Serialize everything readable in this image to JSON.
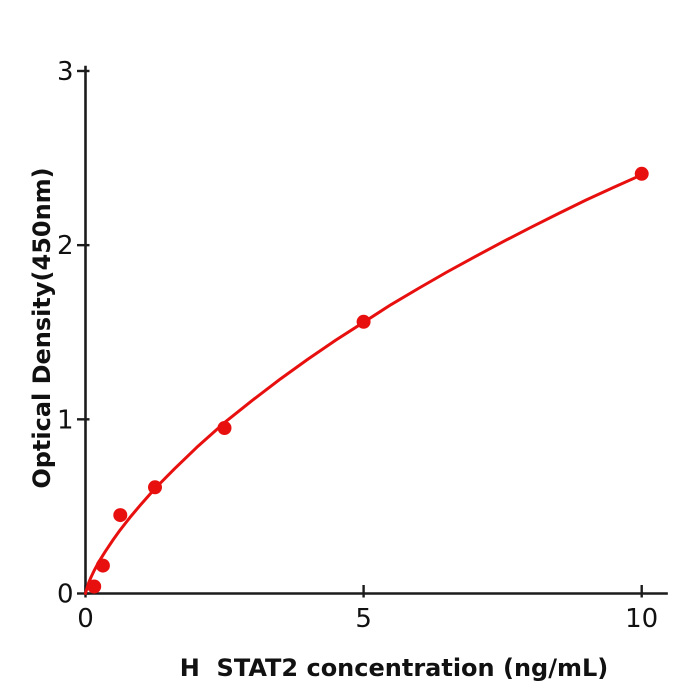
{
  "chart_data": {
    "type": "scatter",
    "subtype": "standard-curve-with-fit",
    "title": "",
    "xlabel": "H  STAT2 concentration (ng/mL)",
    "ylabel": "Optical Density(450nm)",
    "xlim": [
      0,
      10.47
    ],
    "ylim": [
      0,
      3.03
    ],
    "grid": false,
    "legend": null,
    "x_ticks": [
      {
        "value": 0,
        "label": "0"
      },
      {
        "value": 5,
        "label": "5"
      },
      {
        "value": 10,
        "label": "10"
      }
    ],
    "y_ticks": [
      {
        "value": 0,
        "label": "0"
      },
      {
        "value": 1,
        "label": "1"
      },
      {
        "value": 2,
        "label": "2"
      },
      {
        "value": 3,
        "label": "3"
      }
    ],
    "series": [
      {
        "name": "H STAT2 standard points",
        "type": "scatter",
        "marker": "circle",
        "points": [
          [
            0.156,
            0.04
          ],
          [
            0.313,
            0.16
          ],
          [
            0.625,
            0.45
          ],
          [
            1.25,
            0.61
          ],
          [
            2.5,
            0.95
          ],
          [
            5,
            1.56
          ],
          [
            10,
            2.41
          ]
        ]
      },
      {
        "name": "fitted curve",
        "type": "line",
        "points": [
          [
            0,
            0
          ],
          [
            0.05,
            0.056
          ],
          [
            0.1,
            0.095
          ],
          [
            0.156,
            0.132
          ],
          [
            0.25,
            0.187
          ],
          [
            0.35,
            0.239
          ],
          [
            0.5,
            0.31
          ],
          [
            0.625,
            0.366
          ],
          [
            0.8,
            0.437
          ],
          [
            1.0,
            0.513
          ],
          [
            1.25,
            0.603
          ],
          [
            1.6,
            0.716
          ],
          [
            2.0,
            0.839
          ],
          [
            2.5,
            0.981
          ],
          [
            3.0,
            1.109
          ],
          [
            3.5,
            1.231
          ],
          [
            4.0,
            1.346
          ],
          [
            4.5,
            1.455
          ],
          [
            5.0,
            1.557
          ],
          [
            5.5,
            1.66
          ],
          [
            6.0,
            1.754
          ],
          [
            6.5,
            1.846
          ],
          [
            7.0,
            1.933
          ],
          [
            7.5,
            2.019
          ],
          [
            8.0,
            2.101
          ],
          [
            8.5,
            2.181
          ],
          [
            9.0,
            2.259
          ],
          [
            9.5,
            2.333
          ],
          [
            10,
            2.404
          ]
        ]
      }
    ],
    "colors": {
      "curve": "#e8100f",
      "marker": "#e8100f",
      "axis": "#1c1c1c",
      "text": "#111111"
    }
  }
}
